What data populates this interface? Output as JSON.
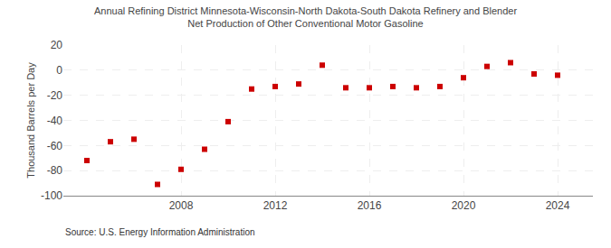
{
  "chart_data": {
    "type": "scatter",
    "title": "Annual Refining District Minnesota-Wisconsin-North Dakota-South Dakota Refinery and Blender\nNet Production of Other Conventional Motor Gasoline",
    "ylabel": "Thousand Barrels per Day",
    "annotations": [
      "Source: U.S. Energy Information Administration"
    ],
    "x": [
      2004,
      2005,
      2006,
      2007,
      2008,
      2009,
      2010,
      2011,
      2012,
      2013,
      2014,
      2015,
      2016,
      2017,
      2018,
      2019,
      2020,
      2021,
      2022,
      2023,
      2024
    ],
    "values": [
      -72,
      -57,
      -55,
      -91,
      -79,
      -63,
      -41,
      -15,
      -13,
      -11,
      4,
      -14,
      -14,
      -13,
      -14,
      -13,
      -6,
      3,
      6,
      -3,
      -4
    ],
    "color": "#cc0000",
    "marker": "square",
    "xlim": [
      2003.0,
      2025.5
    ],
    "xticks": [
      2008,
      2012,
      2016,
      2020,
      2024
    ],
    "ylim": [
      -100,
      20
    ],
    "yticks": [
      -100,
      -80,
      -60,
      -40,
      -20,
      0,
      20
    ],
    "grid": true
  }
}
